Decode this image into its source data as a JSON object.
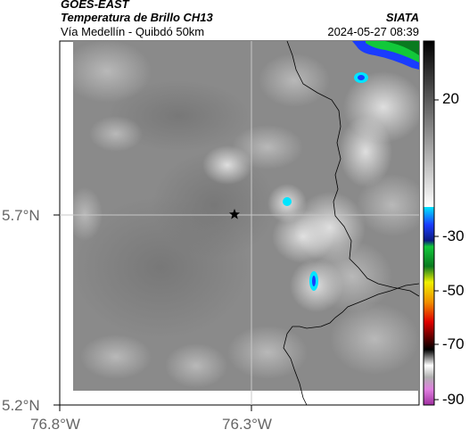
{
  "header": {
    "satellite": "GOES-EAST",
    "product": "Temperatura de Brillo CH13",
    "region": "Vía Medellín - Quibdó 50km",
    "agency": "SIATA",
    "datetime": "2024-05-27 08:39"
  },
  "map": {
    "lat_labels": [
      "5.7°N",
      "5.2°N"
    ],
    "lon_labels": [
      "76.8°W",
      "76.3°W"
    ],
    "marker": "star-icon",
    "gridlines": true
  },
  "colorbar": {
    "ticks": [
      "20",
      "-30",
      "-50",
      "-70",
      "-90"
    ],
    "colors": {
      "warm_top": "#000000",
      "warm_bottom": "#ffffff",
      "cyan": "#00e5ff",
      "blue": "#1a3cff",
      "green": "#12c83a",
      "yellow": "#f0f000",
      "red": "#e00000",
      "black": "#000000",
      "white": "#ffffff",
      "magenta": "#c050c0"
    }
  }
}
